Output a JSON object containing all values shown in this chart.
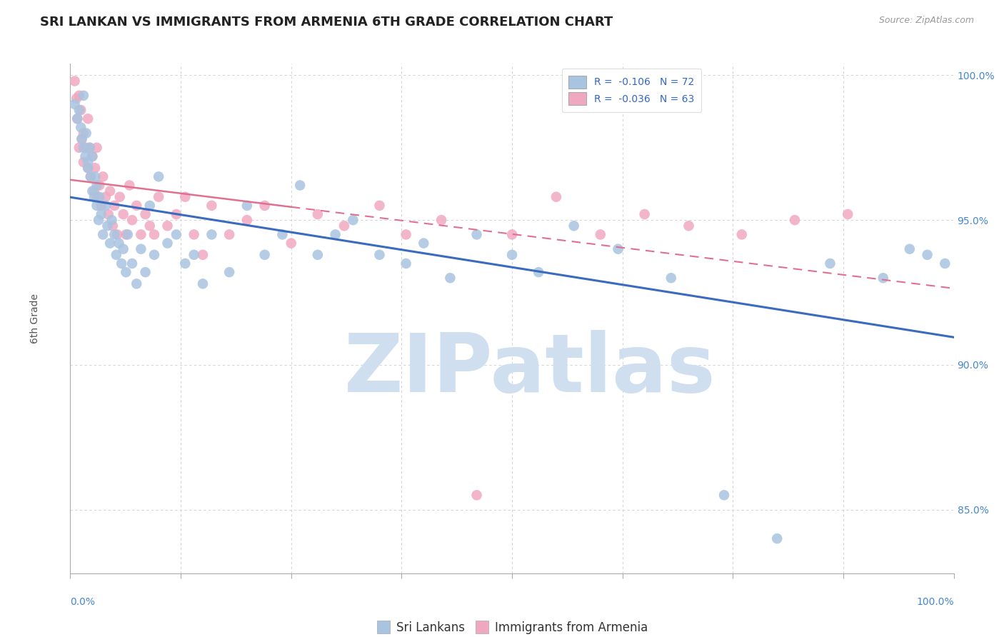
{
  "title": "SRI LANKAN VS IMMIGRANTS FROM ARMENIA 6TH GRADE CORRELATION CHART",
  "source": "Source: ZipAtlas.com",
  "ylabel": "6th Grade",
  "legend_labels": [
    "Sri Lankans",
    "Immigrants from Armenia"
  ],
  "legend_R": [
    -0.106,
    -0.036
  ],
  "legend_N": [
    72,
    63
  ],
  "blue_color": "#a8c4e0",
  "pink_color": "#f0a8c0",
  "blue_line_color": "#3a6bbf",
  "pink_line_color": "#e07090",
  "watermark": "ZIPatlas",
  "watermark_color": "#d0dff0",
  "xmin": 0.0,
  "xmax": 1.0,
  "ymin": 0.828,
  "ymax": 1.004,
  "yticks": [
    0.85,
    0.9,
    0.95,
    1.0
  ],
  "ytick_labels": [
    "85.0%",
    "90.0%",
    "95.0%",
    "100.0%"
  ],
  "background_color": "#ffffff",
  "grid_color": "#cccccc",
  "title_fontsize": 13,
  "axis_label_fontsize": 10,
  "tick_fontsize": 10,
  "legend_fontsize": 12,
  "blue_scatter_x": [
    0.005,
    0.008,
    0.01,
    0.012,
    0.013,
    0.015,
    0.015,
    0.017,
    0.018,
    0.02,
    0.02,
    0.022,
    0.023,
    0.025,
    0.025,
    0.027,
    0.028,
    0.03,
    0.03,
    0.032,
    0.033,
    0.035,
    0.037,
    0.04,
    0.042,
    0.045,
    0.047,
    0.05,
    0.052,
    0.055,
    0.058,
    0.06,
    0.063,
    0.065,
    0.07,
    0.075,
    0.08,
    0.085,
    0.09,
    0.095,
    0.1,
    0.11,
    0.12,
    0.13,
    0.14,
    0.15,
    0.16,
    0.18,
    0.2,
    0.22,
    0.24,
    0.26,
    0.28,
    0.3,
    0.32,
    0.35,
    0.38,
    0.4,
    0.43,
    0.46,
    0.5,
    0.53,
    0.57,
    0.62,
    0.68,
    0.74,
    0.8,
    0.86,
    0.92,
    0.95,
    0.97,
    0.99
  ],
  "blue_scatter_y": [
    0.99,
    0.985,
    0.988,
    0.982,
    0.978,
    0.975,
    0.993,
    0.972,
    0.98,
    0.97,
    0.968,
    0.975,
    0.965,
    0.972,
    0.96,
    0.958,
    0.965,
    0.955,
    0.962,
    0.95,
    0.958,
    0.952,
    0.945,
    0.955,
    0.948,
    0.942,
    0.95,
    0.945,
    0.938,
    0.942,
    0.935,
    0.94,
    0.932,
    0.945,
    0.935,
    0.928,
    0.94,
    0.932,
    0.955,
    0.938,
    0.965,
    0.942,
    0.945,
    0.935,
    0.938,
    0.928,
    0.945,
    0.932,
    0.955,
    0.938,
    0.945,
    0.962,
    0.938,
    0.945,
    0.95,
    0.938,
    0.935,
    0.942,
    0.93,
    0.945,
    0.938,
    0.932,
    0.948,
    0.94,
    0.93,
    0.855,
    0.84,
    0.935,
    0.93,
    0.94,
    0.938,
    0.935
  ],
  "pink_scatter_x": [
    0.005,
    0.007,
    0.008,
    0.01,
    0.01,
    0.012,
    0.013,
    0.015,
    0.015,
    0.018,
    0.02,
    0.02,
    0.022,
    0.023,
    0.025,
    0.027,
    0.028,
    0.03,
    0.03,
    0.033,
    0.035,
    0.037,
    0.04,
    0.043,
    0.045,
    0.048,
    0.05,
    0.053,
    0.056,
    0.06,
    0.063,
    0.067,
    0.07,
    0.075,
    0.08,
    0.085,
    0.09,
    0.095,
    0.1,
    0.11,
    0.12,
    0.13,
    0.14,
    0.15,
    0.16,
    0.18,
    0.2,
    0.22,
    0.25,
    0.28,
    0.31,
    0.35,
    0.38,
    0.42,
    0.46,
    0.5,
    0.55,
    0.6,
    0.65,
    0.7,
    0.76,
    0.82,
    0.88
  ],
  "pink_scatter_y": [
    0.998,
    0.992,
    0.985,
    0.993,
    0.975,
    0.988,
    0.978,
    0.98,
    0.97,
    0.975,
    0.985,
    0.968,
    0.975,
    0.965,
    0.972,
    0.96,
    0.968,
    0.975,
    0.958,
    0.962,
    0.955,
    0.965,
    0.958,
    0.952,
    0.96,
    0.948,
    0.955,
    0.945,
    0.958,
    0.952,
    0.945,
    0.962,
    0.95,
    0.955,
    0.945,
    0.952,
    0.948,
    0.945,
    0.958,
    0.948,
    0.952,
    0.958,
    0.945,
    0.938,
    0.955,
    0.945,
    0.95,
    0.955,
    0.942,
    0.952,
    0.948,
    0.955,
    0.945,
    0.95,
    0.855,
    0.945,
    0.958,
    0.945,
    0.952,
    0.948,
    0.945,
    0.95,
    0.952
  ]
}
